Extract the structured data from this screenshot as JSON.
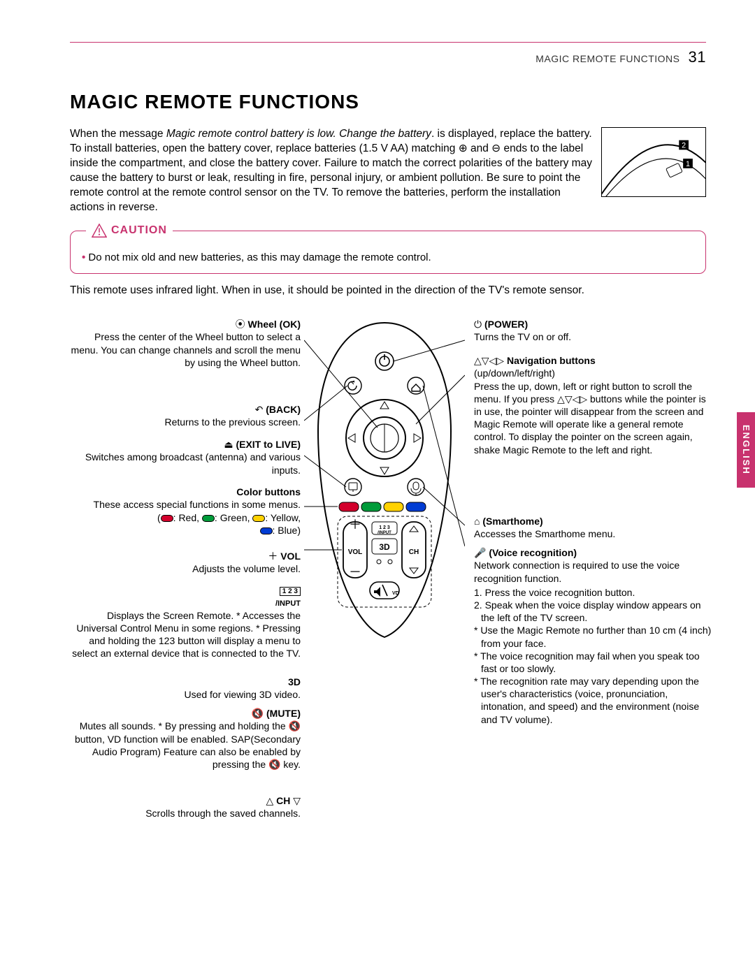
{
  "header": {
    "section": "MAGIC REMOTE FUNCTIONS",
    "page": "31"
  },
  "title": "MAGIC REMOTE FUNCTIONS",
  "lang_tab": "ENGLISH",
  "intro": {
    "pre": "When the message ",
    "italic": "Magic remote control battery is low. Change the battery",
    "post": ". is displayed, replace the battery. To install batteries, open the battery cover, replace batteries (1.5 V AA) matching ⊕ and ⊖ ends to the label inside the compartment, and close the battery cover. Failure to match the correct polarities of the battery may cause the battery to burst or leak, resulting in fire, personal injury, or ambient pollution. Be sure to point the remote control at the remote control sensor on the TV. To remove the batteries, perform the installation actions in reverse."
  },
  "caution": {
    "title": "CAUTION",
    "item": "Do not mix old and new batteries, as this may damage the remote control."
  },
  "subtext": "This remote uses infrared light. When in use, it should be pointed in the direction of the TV's remote sensor.",
  "battery_numbers": {
    "one": "1",
    "two": "2"
  },
  "remote_labels": {
    "vol": "VOL",
    "ch": "CH",
    "input": "/INPUT",
    "btn123": "1 2 3",
    "threeD": "3D",
    "vd": "VD"
  },
  "left": {
    "wheel": {
      "title": "Wheel (OK)",
      "body": "Press the center of the Wheel button to select a menu. You can change channels and scroll the menu by using the Wheel button."
    },
    "back": {
      "title": "(BACK)",
      "body": "Returns to the previous screen."
    },
    "exit": {
      "title": "(EXIT to LIVE)",
      "body": "Switches among broadcast (antenna) and various inputs."
    },
    "color": {
      "title": "Color buttons",
      "body": "These access special functions in some menus.",
      "legend": ": Red,    : Green,    : Yellow,    : Blue)"
    },
    "vol": {
      "title": "VOL",
      "body": "Adjusts the volume level."
    },
    "input": {
      "title_a": "1 2 3",
      "title_b": "/INPUT",
      "body": "Displays the Screen Remote. * Accesses the Universal Control Menu in some regions. * Pressing and holding the 123 button will display a menu to select an external device that is connected to the TV."
    },
    "threeD": {
      "title": "3D",
      "body": "Used for viewing 3D video."
    },
    "mute": {
      "title": "(MUTE)",
      "body": "Mutes all sounds. * By pressing and holding the 🔇 button, VD function will be enabled. SAP(Secondary Audio Program) Feature can also be enabled by pressing the 🔇 key."
    },
    "ch": {
      "title": "CH",
      "body": "Scrolls through the saved channels."
    }
  },
  "right": {
    "power": {
      "title": "(POWER)",
      "body": "Turns the TV on or off."
    },
    "nav": {
      "title": "Navigation buttons",
      "sub": "(up/down/left/right)",
      "body": "Press the up, down, left or right button to scroll the menu. If you press △▽◁▷ buttons while the pointer is in use, the pointer will disappear from the screen and Magic Remote will operate like a general remote control. To display the pointer on the screen again, shake Magic Remote to the left and right."
    },
    "smart": {
      "title": "(Smarthome)",
      "body": "Accesses the Smarthome menu."
    },
    "voice": {
      "title": "(Voice recognition)",
      "body": "Network connection is required to use the voice recognition function.",
      "items": [
        "1. Press the voice recognition button.",
        "2. Speak when the voice display window appears on the left of the TV screen.",
        "* Use the Magic Remote no further than 10 cm (4 inch) from your face.",
        "* The voice recognition may fail when you speak too fast or too slowly.",
        "* The recognition rate may vary depending upon the user's characteristics (voice, pronunciation, intonation, and speed) and the environment (noise and TV volume)."
      ]
    }
  },
  "colors": {
    "accent": "#c8326e",
    "red": "#d3002c",
    "green": "#009b3a",
    "yellow": "#ffd200",
    "blue": "#003cd3"
  }
}
